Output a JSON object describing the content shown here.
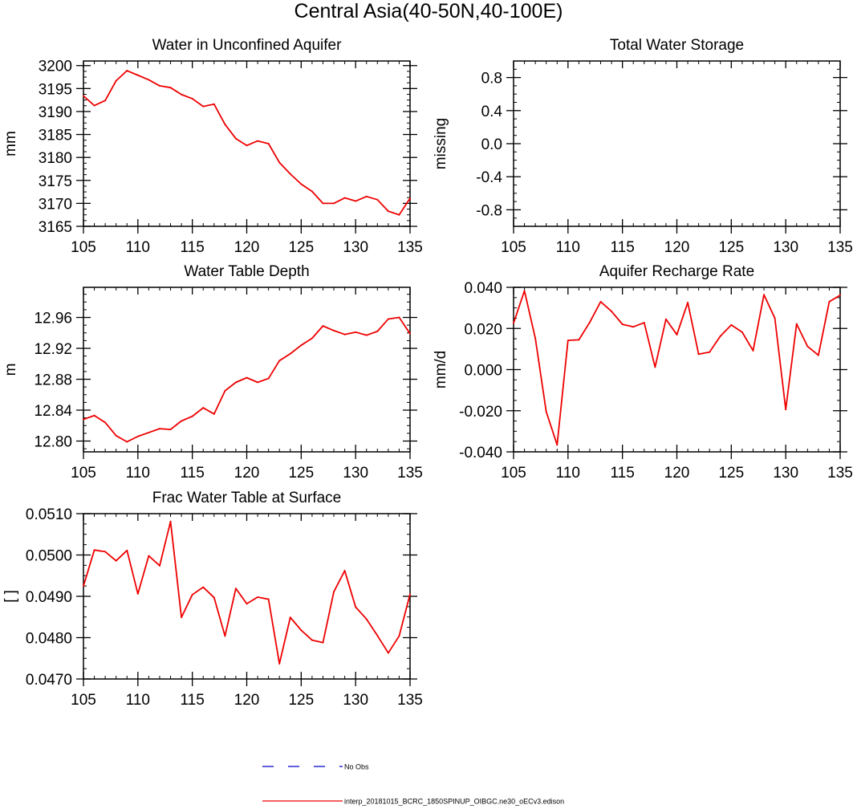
{
  "page": {
    "title": "Central Asia(40-50N,40-100E)"
  },
  "legend": {
    "obs_label": "No Obs",
    "obs_color": "#0000cc",
    "model_label": "interp_20181015_BCRC_1850SPINUP_OIBGC.ne30_oECv3.edison",
    "model_color": "#ee0000"
  },
  "chart_data": [
    {
      "id": "wa",
      "type": "line",
      "title": "Water in Unconfined Aquifer",
      "xlabel": "",
      "ylabel": "mm",
      "xlim": [
        105,
        135
      ],
      "ylim": [
        3165,
        3201
      ],
      "x_ticks": [
        105,
        110,
        115,
        120,
        125,
        130,
        135
      ],
      "x_tick_labels": [
        "105",
        "110",
        "115",
        "120",
        "125",
        "130",
        "135"
      ],
      "y_ticks": [
        3165,
        3170,
        3175,
        3180,
        3185,
        3190,
        3195,
        3200
      ],
      "y_tick_labels": [
        "3165",
        "3170",
        "3175",
        "3180",
        "3185",
        "3190",
        "3195",
        "3200"
      ],
      "x": [
        105,
        106,
        107,
        108,
        109,
        110,
        111,
        112,
        113,
        114,
        115,
        116,
        117,
        118,
        119,
        120,
        121,
        122,
        123,
        124,
        125,
        126,
        127,
        128,
        129,
        130,
        131,
        132,
        133,
        134,
        135
      ],
      "series": [
        {
          "name": "interp_20181015_BCRC_1850SPINUP_OIBGC.ne30_oECv3.edison",
          "color": "#ee0000",
          "values": [
            3193.4,
            3191.3,
            3192.4,
            3196.7,
            3198.9,
            3197.9,
            3196.9,
            3195.6,
            3195.2,
            3193.7,
            3192.8,
            3191.1,
            3191.6,
            3187.2,
            3184.1,
            3182.6,
            3183.6,
            3183.0,
            3178.9,
            3176.4,
            3174.2,
            3172.6,
            3170.0,
            3170.0,
            3171.2,
            3170.5,
            3171.5,
            3170.8,
            3168.3,
            3167.5,
            3171.1
          ]
        }
      ]
    },
    {
      "id": "tws",
      "type": "line",
      "title": "Total Water Storage",
      "xlabel": "",
      "ylabel": "missing",
      "xlim": [
        105,
        135
      ],
      "ylim": [
        -1,
        1
      ],
      "x_ticks": [
        105,
        110,
        115,
        120,
        125,
        130,
        135
      ],
      "x_tick_labels": [
        "105",
        "110",
        "115",
        "120",
        "125",
        "130",
        "135"
      ],
      "y_ticks": [
        -0.8,
        -0.4,
        0.0,
        0.4,
        0.8
      ],
      "y_tick_labels": [
        "-0.8",
        "-0.4",
        "0.0",
        "0.4",
        "0.8"
      ],
      "x": [],
      "series": []
    },
    {
      "id": "wtd",
      "type": "line",
      "title": "Water Table Depth",
      "xlabel": "",
      "ylabel": "m",
      "xlim": [
        105,
        135
      ],
      "ylim": [
        12.786,
        12.999
      ],
      "x_ticks": [
        105,
        110,
        115,
        120,
        125,
        130,
        135
      ],
      "x_tick_labels": [
        "105",
        "110",
        "115",
        "120",
        "125",
        "130",
        "135"
      ],
      "y_ticks": [
        12.8,
        12.84,
        12.88,
        12.92,
        12.96
      ],
      "y_tick_labels": [
        "12.80",
        "12.84",
        "12.88",
        "12.92",
        "12.96"
      ],
      "x": [
        105,
        106,
        107,
        108,
        109,
        110,
        111,
        112,
        113,
        114,
        115,
        116,
        117,
        118,
        119,
        120,
        121,
        122,
        123,
        124,
        125,
        126,
        127,
        128,
        129,
        130,
        131,
        132,
        133,
        134,
        135
      ],
      "series": [
        {
          "name": "interp_20181015_BCRC_1850SPINUP_OIBGC.ne30_oECv3.edison",
          "color": "#ee0000",
          "values": [
            12.828,
            12.833,
            12.824,
            12.807,
            12.799,
            12.806,
            12.811,
            12.816,
            12.815,
            12.826,
            12.832,
            12.843,
            12.835,
            12.865,
            12.876,
            12.882,
            12.876,
            12.881,
            12.904,
            12.913,
            12.924,
            12.933,
            12.949,
            12.943,
            12.938,
            12.941,
            12.937,
            12.942,
            12.958,
            12.96,
            12.939
          ]
        }
      ]
    },
    {
      "id": "qrech",
      "type": "line",
      "title": "Aquifer Recharge Rate",
      "xlabel": "",
      "ylabel": "mm/d",
      "xlim": [
        105,
        135
      ],
      "ylim": [
        -0.04,
        0.04
      ],
      "x_ticks": [
        105,
        110,
        115,
        120,
        125,
        130,
        135
      ],
      "x_tick_labels": [
        "105",
        "110",
        "115",
        "120",
        "125",
        "130",
        "135"
      ],
      "y_ticks": [
        -0.04,
        -0.02,
        0.0,
        0.02,
        0.04
      ],
      "y_tick_labels": [
        "-0.040",
        "-0.020",
        "0.000",
        "0.020",
        "0.040"
      ],
      "x": [
        105,
        106,
        107,
        108,
        109,
        110,
        111,
        112,
        113,
        114,
        115,
        116,
        117,
        118,
        119,
        120,
        121,
        122,
        123,
        124,
        125,
        126,
        127,
        128,
        129,
        130,
        131,
        132,
        133,
        134,
        135
      ],
      "series": [
        {
          "name": "interp_20181015_BCRC_1850SPINUP_OIBGC.ne30_oECv3.edison",
          "color": "#ee0000",
          "values": [
            0.0226,
            0.0383,
            0.0152,
            -0.0205,
            -0.0366,
            0.0142,
            0.0145,
            0.023,
            0.033,
            0.0283,
            0.022,
            0.0208,
            0.0228,
            0.0012,
            0.0245,
            0.017,
            0.0326,
            0.0075,
            0.0085,
            0.0163,
            0.0217,
            0.0182,
            0.0092,
            0.0364,
            0.025,
            -0.0194,
            0.0222,
            0.0113,
            0.007,
            0.033,
            0.0362
          ]
        }
      ]
    },
    {
      "id": "fwts",
      "type": "line",
      "title": "Frac Water Table at Surface",
      "xlabel": "",
      "ylabel": "[ ]",
      "xlim": [
        105,
        135
      ],
      "ylim": [
        0.047,
        0.051
      ],
      "x_ticks": [
        105,
        110,
        115,
        120,
        125,
        130,
        135
      ],
      "x_tick_labels": [
        "105",
        "110",
        "115",
        "120",
        "125",
        "130",
        "135"
      ],
      "y_ticks": [
        0.047,
        0.048,
        0.049,
        0.05,
        0.051
      ],
      "y_tick_labels": [
        "0.0470",
        "0.0480",
        "0.0490",
        "0.0500",
        "0.0510"
      ],
      "x": [
        105,
        106,
        107,
        108,
        109,
        110,
        111,
        112,
        113,
        114,
        115,
        116,
        117,
        118,
        119,
        120,
        121,
        122,
        123,
        124,
        125,
        126,
        127,
        128,
        129,
        130,
        131,
        132,
        133,
        134,
        135
      ],
      "series": [
        {
          "name": "interp_20181015_BCRC_1850SPINUP_OIBGC.ne30_oECv3.edison",
          "color": "#ee0000",
          "values": [
            0.04925,
            0.05012,
            0.05008,
            0.04986,
            0.05011,
            0.04906,
            0.04998,
            0.04974,
            0.05081,
            0.04849,
            0.04904,
            0.04922,
            0.04897,
            0.04804,
            0.04919,
            0.04882,
            0.04898,
            0.04893,
            0.04737,
            0.04849,
            0.04818,
            0.04794,
            0.04788,
            0.04911,
            0.04962,
            0.04874,
            0.04845,
            0.04805,
            0.04763,
            0.04804,
            0.04905
          ]
        }
      ]
    }
  ]
}
